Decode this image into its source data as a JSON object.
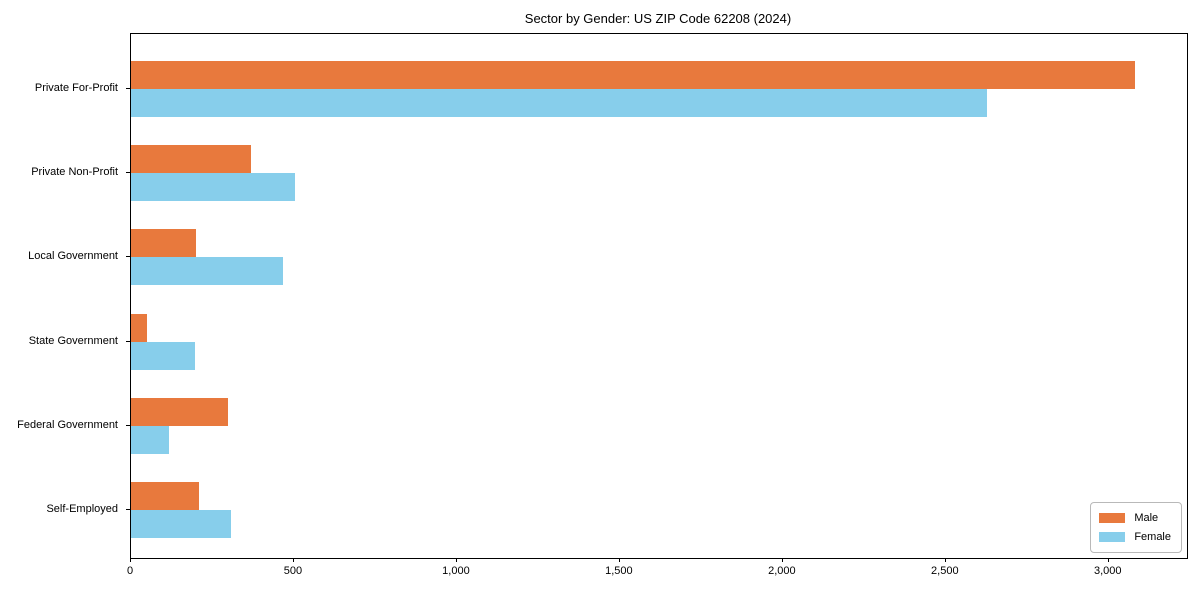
{
  "title": "Sector by Gender: US ZIP Code 62208 (2024)",
  "colors": {
    "male": "#E8793D",
    "female": "#87CEEB",
    "spine": "#000000",
    "legend_border": "#B9B9B9"
  },
  "legend": {
    "position": "lower right",
    "entries": [
      {
        "label": "Male",
        "color": "#E8793D"
      },
      {
        "label": "Female",
        "color": "#87CEEB"
      }
    ]
  },
  "chart_data": {
    "type": "bar",
    "orientation": "horizontal",
    "title": "Sector by Gender: US ZIP Code 62208 (2024)",
    "categories": [
      "Private For-Profit",
      "Private Non-Profit",
      "Local Government",
      "State Government",
      "Federal Government",
      "Self-Employed"
    ],
    "series": [
      {
        "name": "Male",
        "color": "#E8793D",
        "values": [
          3080,
          368,
          199,
          48,
          297,
          209
        ]
      },
      {
        "name": "Female",
        "color": "#87CEEB",
        "values": [
          2625,
          504,
          465,
          196,
          118,
          306
        ]
      }
    ],
    "xlabel": "",
    "ylabel": "",
    "xlim": [
      0,
      3240
    ],
    "xticks": [
      0,
      500,
      1000,
      1500,
      2000,
      2500,
      3000
    ],
    "xtick_labels": [
      "0",
      "500",
      "1,000",
      "1,500",
      "2,000",
      "2,500",
      "3,000"
    ],
    "grid": false,
    "legend_position": "lower right"
  }
}
